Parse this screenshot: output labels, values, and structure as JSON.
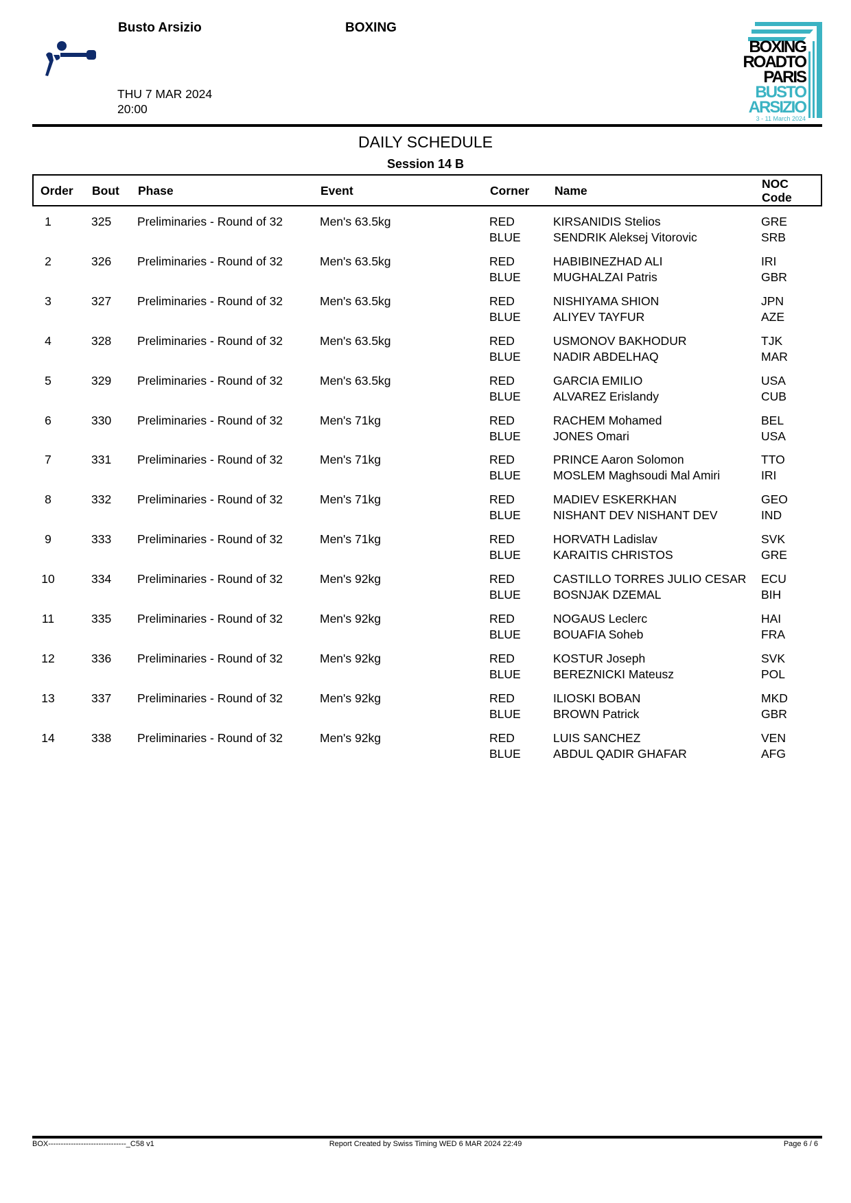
{
  "header": {
    "venue": "Busto Arsizio",
    "sport": "BOXING",
    "date": "THU 7 MAR 2024",
    "time": "20:00",
    "logo_text": [
      "BOXING",
      "ROADTO",
      "PARIS",
      "BUSTO",
      "ARSIZIO",
      "3 - 11 March 2024"
    ],
    "logo_colors": {
      "dark": "#000000",
      "accent": "#3bb3c3"
    },
    "pictogram_color": "#0f2b6b"
  },
  "title": "DAILY SCHEDULE",
  "session": "Session 14 B",
  "columns": [
    "Order",
    "Bout",
    "Phase",
    "Event",
    "Corner",
    "Name",
    "NOC",
    "Code"
  ],
  "rows": [
    {
      "order": "1",
      "bout": "325",
      "phase": "Preliminaries - Round of 32",
      "event": "Men's 63.5kg",
      "c1": "RED",
      "c2": "BLUE",
      "n1": "KIRSANIDIS Stelios",
      "n2": "SENDRIK Aleksej Vitorovic",
      "o1": "GRE",
      "o2": "SRB"
    },
    {
      "order": "2",
      "bout": "326",
      "phase": "Preliminaries - Round of 32",
      "event": "Men's 63.5kg",
      "c1": "RED",
      "c2": "BLUE",
      "n1": "HABIBINEZHAD ALI",
      "n2": "MUGHALZAI Patris",
      "o1": "IRI",
      "o2": "GBR"
    },
    {
      "order": "3",
      "bout": "327",
      "phase": "Preliminaries - Round of 32",
      "event": "Men's 63.5kg",
      "c1": "RED",
      "c2": "BLUE",
      "n1": "NISHIYAMA SHION",
      "n2": "ALIYEV TAYFUR",
      "o1": "JPN",
      "o2": "AZE"
    },
    {
      "order": "4",
      "bout": "328",
      "phase": "Preliminaries - Round of 32",
      "event": "Men's 63.5kg",
      "c1": "RED",
      "c2": "BLUE",
      "n1": "USMONOV BAKHODUR",
      "n2": "NADIR ABDELHAQ",
      "o1": "TJK",
      "o2": "MAR"
    },
    {
      "order": "5",
      "bout": "329",
      "phase": "Preliminaries - Round of 32",
      "event": "Men's 63.5kg",
      "c1": "RED",
      "c2": "BLUE",
      "n1": "GARCIA EMILIO",
      "n2": "ALVAREZ Erislandy",
      "o1": "USA",
      "o2": "CUB"
    },
    {
      "order": "6",
      "bout": "330",
      "phase": "Preliminaries - Round of 32",
      "event": "Men's 71kg",
      "c1": "RED",
      "c2": "BLUE",
      "n1": "RACHEM Mohamed",
      "n2": "JONES Omari",
      "o1": "BEL",
      "o2": "USA"
    },
    {
      "order": "7",
      "bout": "331",
      "phase": "Preliminaries - Round of 32",
      "event": "Men's 71kg",
      "c1": "RED",
      "c2": "BLUE",
      "n1": "PRINCE Aaron Solomon",
      "n2": "MOSLEM Maghsoudi Mal Amiri",
      "o1": "TTO",
      "o2": "IRI"
    },
    {
      "order": "8",
      "bout": "332",
      "phase": "Preliminaries - Round of 32",
      "event": "Men's 71kg",
      "c1": "RED",
      "c2": "BLUE",
      "n1": "MADIEV ESKERKHAN",
      "n2": "NISHANT DEV NISHANT DEV",
      "o1": "GEO",
      "o2": "IND"
    },
    {
      "order": "9",
      "bout": "333",
      "phase": "Preliminaries - Round of 32",
      "event": "Men's 71kg",
      "c1": "RED",
      "c2": "BLUE",
      "n1": "HORVATH Ladislav",
      "n2": "KARAITIS CHRISTOS",
      "o1": "SVK",
      "o2": "GRE"
    },
    {
      "order": "10",
      "bout": "334",
      "phase": "Preliminaries - Round of 32",
      "event": "Men's 92kg",
      "c1": "RED",
      "c2": "BLUE",
      "n1": "CASTILLO TORRES JULIO CESAR",
      "n2": "BOSNJAK DZEMAL",
      "o1": "ECU",
      "o2": "BIH"
    },
    {
      "order": "11",
      "bout": "335",
      "phase": "Preliminaries - Round of 32",
      "event": "Men's 92kg",
      "c1": "RED",
      "c2": "BLUE",
      "n1": "NOGAUS Leclerc",
      "n2": "BOUAFIA Soheb",
      "o1": "HAI",
      "o2": "FRA"
    },
    {
      "order": "12",
      "bout": "336",
      "phase": "Preliminaries - Round of 32",
      "event": "Men's 92kg",
      "c1": "RED",
      "c2": "BLUE",
      "n1": "KOSTUR Joseph",
      "n2": "BEREZNICKI Mateusz",
      "o1": "SVK",
      "o2": "POL"
    },
    {
      "order": "13",
      "bout": "337",
      "phase": "Preliminaries - Round of 32",
      "event": "Men's 92kg",
      "c1": "RED",
      "c2": "BLUE",
      "n1": "ILIOSKI BOBAN",
      "n2": "BROWN Patrick",
      "o1": "MKD",
      "o2": "GBR"
    },
    {
      "order": "14",
      "bout": "338",
      "phase": "Preliminaries - Round of 32",
      "event": "Men's 92kg",
      "c1": "RED",
      "c2": "BLUE",
      "n1": "LUIS SANCHEZ",
      "n2": "ABDUL QADIR GHAFAR",
      "o1": "VEN",
      "o2": "AFG"
    }
  ],
  "footer": {
    "left": "BOX-------------------------------_C58 v1",
    "center": "Report Created by Swiss Timing  WED 6 MAR 2024 22:49",
    "right": "Page 6 / 6"
  }
}
